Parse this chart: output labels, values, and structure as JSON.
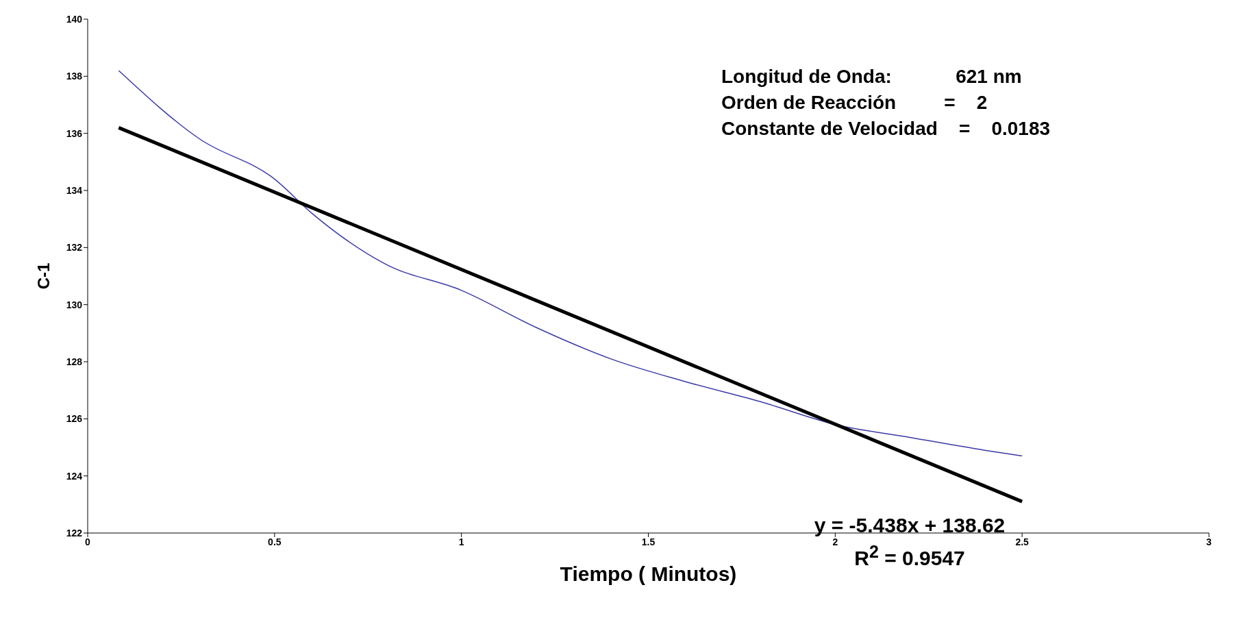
{
  "chart_data": {
    "type": "line",
    "xlabel": "Tiempo ( Minutos)",
    "ylabel": "C-1",
    "xlim": [
      0,
      3
    ],
    "xticks": [
      0,
      0.5,
      1,
      1.5,
      2,
      2.5,
      3
    ],
    "ylim": [
      122,
      140
    ],
    "yticks": [
      122,
      124,
      126,
      128,
      130,
      132,
      134,
      136,
      138,
      140
    ],
    "grid": false,
    "marker": "none",
    "line_style": "solid",
    "series": [
      {
        "type": "line",
        "color": "#3a3aa8",
        "x": [
          0.083,
          0.3,
          0.5,
          0.6,
          0.8,
          1.0,
          1.2,
          1.4,
          1.6,
          1.8,
          2.0,
          2.2,
          2.4,
          2.5
        ],
        "values": [
          138.2,
          135.8,
          134.4,
          133.2,
          131.4,
          130.5,
          129.2,
          128.1,
          127.3,
          126.6,
          125.8,
          125.35,
          124.9,
          124.7
        ]
      },
      {
        "type": "line",
        "color": "#000000",
        "x": [
          0.083,
          2.5
        ],
        "values": [
          136.2,
          123.1
        ]
      }
    ],
    "annotations": [
      "Longitud de Onda:            621 nm",
      "Orden de Reacción         =    2",
      "Constante de Velocidad    =    0.0183",
      "y = -5.438x + 138.62",
      "R$^{2}$ = 0.9547"
    ]
  }
}
